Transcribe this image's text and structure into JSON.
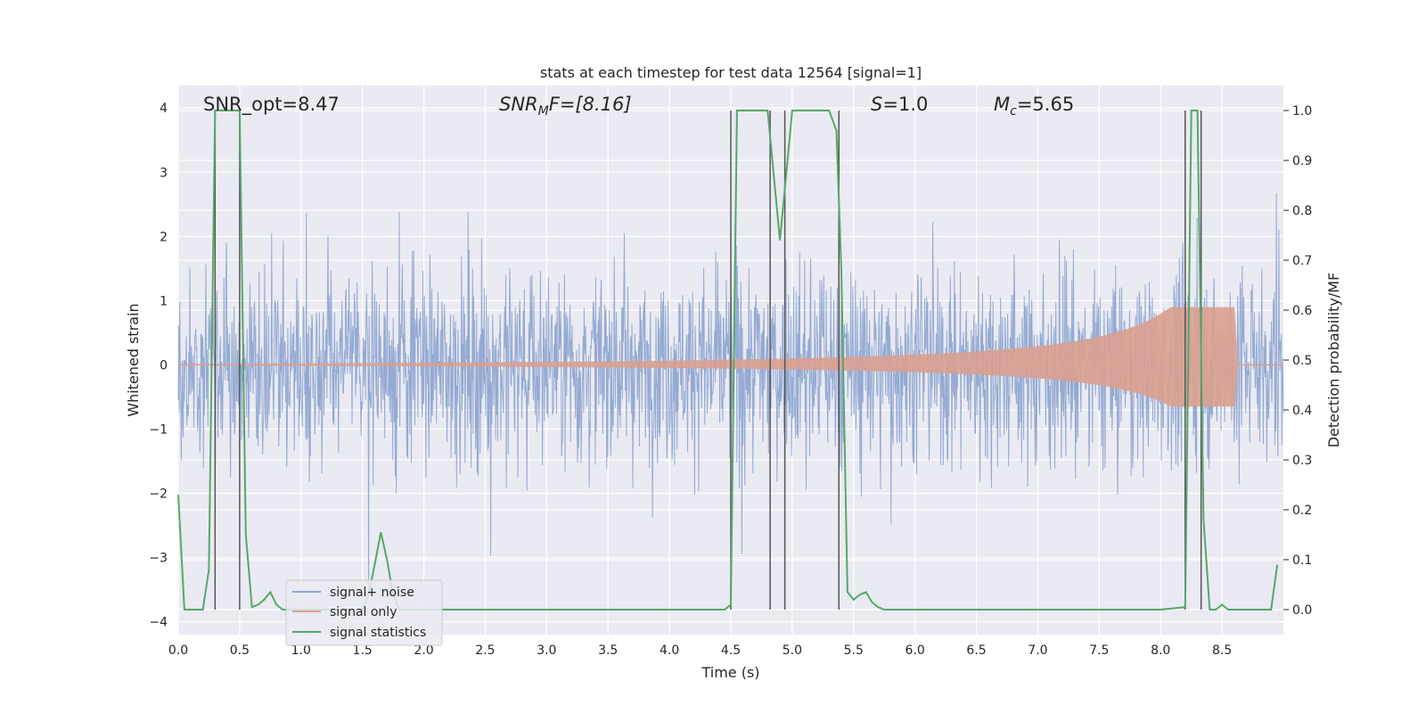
{
  "chart_data": {
    "type": "line",
    "title": "stats at each timestep for test data 12564 [signal=1]",
    "xlabel": "Time (s)",
    "ylabel_left": "Whitened strain",
    "ylabel_right": "Detection probability/MF",
    "xlim": [
      0.0,
      9.0
    ],
    "ylim_left": [
      -4.2,
      4.35
    ],
    "ylim_right": [
      -0.05,
      1.05
    ],
    "x_ticks": [
      0.0,
      0.5,
      1.0,
      1.5,
      2.0,
      2.5,
      3.0,
      3.5,
      4.0,
      4.5,
      5.0,
      5.5,
      6.0,
      6.5,
      7.0,
      7.5,
      8.0,
      8.5
    ],
    "x_tick_labels": [
      "0.0",
      "0.5",
      "1.0",
      "1.5",
      "2.0",
      "2.5",
      "3.0",
      "3.5",
      "4.0",
      "4.5",
      "5.0",
      "5.5",
      "6.0",
      "6.5",
      "7.0",
      "7.5",
      "8.0",
      "8.5"
    ],
    "y_ticks_left": [
      -4,
      -3,
      -2,
      -1,
      0,
      1,
      2,
      3,
      4
    ],
    "y_tick_labels_left": [
      "−4",
      "−3",
      "−2",
      "−1",
      "0",
      "1",
      "2",
      "3",
      "4"
    ],
    "y_ticks_right": [
      0.0,
      0.1,
      0.2,
      0.3,
      0.4,
      0.5,
      0.6,
      0.7,
      0.8,
      0.9,
      1.0
    ],
    "y_tick_labels_right": [
      "0.0",
      "0.1",
      "0.2",
      "0.3",
      "0.4",
      "0.5",
      "0.6",
      "0.7",
      "0.8",
      "0.9",
      "1.0"
    ],
    "grid": true,
    "legend_position": "lower-left",
    "annotations": {
      "snr_opt": "SNR_opt=8.47",
      "snr_mf_base": "SNR",
      "snr_mf_sub": "M",
      "snr_mf_rest": "F=[8.16]",
      "s_var": "S",
      "s_rest": "=1.0",
      "mc_var": "M",
      "mc_sub": "c",
      "mc_rest": "=5.65"
    },
    "series": [
      {
        "name": "signal+ noise",
        "color": "#8fa6d1",
        "description": "whitened strain noise trace, roughly within -2.5..3 with spikes to +4 and -3.5"
      },
      {
        "name": "signal only",
        "color": "#d9a08f",
        "description": "chirp waveform growing in amplitude, peaking ~0.9 near 8.63 s then ending"
      },
      {
        "name": "signal statistics",
        "color": "#55a868",
        "x": [
          0.0,
          0.05,
          0.1,
          0.2,
          0.25,
          0.3,
          0.35,
          0.4,
          0.45,
          0.5,
          0.55,
          0.6,
          0.65,
          0.7,
          0.75,
          0.8,
          0.85,
          0.9,
          1.0,
          1.1,
          1.2,
          1.3,
          1.4,
          1.5,
          1.55,
          1.6,
          1.65,
          1.7,
          1.75,
          1.8,
          1.85,
          1.9,
          2.0,
          2.2,
          2.5,
          3.0,
          3.5,
          4.0,
          4.45,
          4.5,
          4.55,
          4.6,
          4.8,
          4.9,
          5.0,
          5.3,
          5.36,
          5.4,
          5.45,
          5.5,
          5.55,
          5.6,
          5.65,
          5.7,
          5.75,
          5.8,
          5.9,
          6.0,
          7.0,
          8.0,
          8.2,
          8.25,
          8.3,
          8.35,
          8.4,
          8.45,
          8.5,
          8.55,
          8.6,
          8.65,
          8.7,
          8.8,
          8.9,
          8.95
        ],
        "values": [
          0.23,
          0.0,
          0.0,
          0.0,
          0.08,
          1.0,
          1.0,
          1.0,
          1.0,
          1.0,
          0.15,
          0.005,
          0.01,
          0.02,
          0.035,
          0.01,
          0.0,
          0.0,
          0.0,
          0.0,
          0.0,
          0.0,
          0.0,
          0.0,
          0.03,
          0.09,
          0.155,
          0.1,
          0.03,
          0.0,
          0.0,
          0.0,
          0.0,
          0.0,
          0.0,
          0.0,
          0.0,
          0.0,
          0.0,
          0.01,
          1.0,
          1.0,
          1.0,
          0.74,
          1.0,
          1.0,
          0.96,
          0.68,
          0.035,
          0.02,
          0.03,
          0.035,
          0.015,
          0.005,
          0.0,
          0.0,
          0.0,
          0.0,
          0.0,
          0.0,
          0.005,
          1.0,
          1.0,
          0.18,
          0.0,
          0.0,
          0.01,
          0.0,
          0.0,
          0.0,
          0.0,
          0.0,
          0.0,
          0.09
        ]
      }
    ],
    "vertical_markers_x": [
      0.3,
      0.5,
      4.5,
      4.82,
      4.94,
      5.38,
      8.2,
      8.33
    ],
    "marker_color": "#555555"
  }
}
